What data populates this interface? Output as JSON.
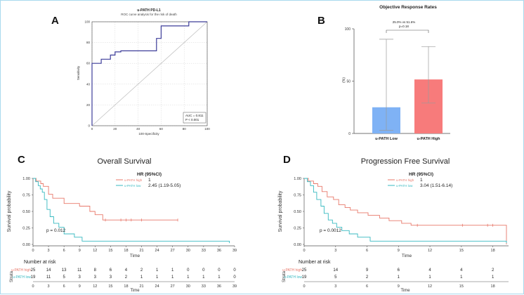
{
  "panels": {
    "a": {
      "letter": "A"
    },
    "b": {
      "letter": "B"
    },
    "c": {
      "letter": "C"
    },
    "d": {
      "letter": "D"
    }
  },
  "colors": {
    "roc": "#3d3d99",
    "low_bar": "#7fb2f5",
    "high_bar": "#f77b7b",
    "km_high": "#e8786a",
    "km_low": "#37b9c0"
  },
  "chart_data": [
    {
      "id": "roc",
      "type": "line",
      "title": "u-PATH PD-L1",
      "subtitle": "ROC curve analysis for the risk of death",
      "xlabel": "100-Specificity",
      "ylabel": "Sensitivity",
      "xlim": [
        0,
        100
      ],
      "ylim": [
        0,
        100
      ],
      "xticks": [
        "0",
        "20",
        "40",
        "60",
        "80",
        "100"
      ],
      "yticks": [
        "0",
        "20",
        "40",
        "60",
        "80",
        "100"
      ],
      "grid": true,
      "series": [
        {
          "x": [
            0,
            0,
            8,
            8,
            16,
            16,
            20,
            20,
            25,
            25,
            56,
            56,
            60,
            60,
            84,
            84,
            100
          ],
          "y": [
            0,
            60,
            60,
            64,
            64,
            68,
            68,
            71,
            71,
            72,
            72,
            84,
            84,
            96,
            96,
            100,
            100
          ]
        }
      ],
      "reference_line": {
        "x": [
          0,
          100
        ],
        "y": [
          0,
          100
        ]
      },
      "annotations": [
        "AUC = 0.811",
        "P < 0.001"
      ]
    },
    {
      "id": "orr",
      "type": "bar",
      "title": "Objective Response Rates",
      "ylabel": "(%)",
      "ylim": [
        0,
        100
      ],
      "yticks": [
        "0",
        "50",
        "100"
      ],
      "categories": [
        "u-PATH Low",
        "u-PATH High"
      ],
      "values": [
        25.0,
        51.6
      ],
      "error_low": [
        3,
        29
      ],
      "error_high": [
        90,
        83
      ],
      "comparison": {
        "label": "25.0% vs 51.6%",
        "p": "p=0.18"
      }
    },
    {
      "id": "os",
      "type": "line",
      "title": "Overall Survival",
      "xlabel": "Time",
      "ylabel": "Survival probability",
      "xlim": [
        0,
        39
      ],
      "ylim": [
        0,
        1
      ],
      "xticks": [
        "0",
        "3",
        "6",
        "9",
        "12",
        "15",
        "18",
        "21",
        "24",
        "27",
        "30",
        "33",
        "36",
        "39"
      ],
      "yticks": [
        "0.00",
        "0.25",
        "0.50",
        "0.75",
        "1.00"
      ],
      "legend": {
        "placement": "top-center",
        "header": "HR (95%CI)",
        "entries": [
          "u-PATH high",
          "u-PATH low"
        ],
        "values": [
          "1",
          "2.45 (1.19-5.05)"
        ]
      },
      "p_label": "p = 0.012",
      "series": [
        {
          "name": "u-PATH high",
          "x": [
            0,
            0.6,
            0.6,
            1.5,
            1.5,
            2,
            2,
            3,
            3,
            3.8,
            3.8,
            6,
            6,
            9,
            9,
            11,
            11,
            12,
            12,
            13.5,
            13.5,
            28
          ],
          "y": [
            1,
            1,
            0.96,
            0.96,
            0.92,
            0.92,
            0.88,
            0.88,
            0.76,
            0.76,
            0.7,
            0.7,
            0.62,
            0.62,
            0.58,
            0.58,
            0.5,
            0.5,
            0.45,
            0.45,
            0.37,
            0.37
          ],
          "censor_x": [
            14,
            17,
            18,
            19,
            21,
            28
          ],
          "censor_y": [
            0.37,
            0.37,
            0.37,
            0.37,
            0.37,
            0.37
          ]
        },
        {
          "name": "u-PATH low",
          "x": [
            0,
            0.5,
            0.5,
            1,
            1,
            1.4,
            1.4,
            1.8,
            1.8,
            2.2,
            2.2,
            2.7,
            2.7,
            3.3,
            3.3,
            4,
            4,
            5,
            5,
            6,
            6,
            8,
            8,
            9.5,
            9.5,
            38,
            38
          ],
          "y": [
            1,
            1,
            0.95,
            0.95,
            0.89,
            0.89,
            0.84,
            0.84,
            0.79,
            0.79,
            0.68,
            0.68,
            0.53,
            0.53,
            0.42,
            0.42,
            0.32,
            0.32,
            0.26,
            0.26,
            0.16,
            0.16,
            0.11,
            0.11,
            0.05,
            0.05,
            0.02
          ],
          "censor_x": [],
          "censor_y": []
        }
      ],
      "risk_table": {
        "label": "Number at risk",
        "strata_label": "Strata",
        "time_label": "Time",
        "times": [
          "0",
          "3",
          "6",
          "9",
          "12",
          "15",
          "18",
          "21",
          "24",
          "27",
          "30",
          "33",
          "36",
          "39"
        ],
        "rows": [
          {
            "name": "u-PATH high",
            "counts": [
              "25",
              "14",
              "13",
              "11",
              "8",
              "6",
              "4",
              "2",
              "1",
              "1",
              "0",
              "0",
              "0",
              "0"
            ]
          },
          {
            "name": "u-PATH low",
            "counts": [
              "19",
              "11",
              "5",
              "3",
              "3",
              "3",
              "2",
              "1",
              "1",
              "1",
              "1",
              "1",
              "1",
              "0"
            ]
          }
        ]
      }
    },
    {
      "id": "pfs",
      "type": "line",
      "title": "Progression Free Survival",
      "xlabel": "Time",
      "ylabel": "Survival probability",
      "xlim": [
        0,
        19.5
      ],
      "ylim": [
        0,
        1
      ],
      "xticks": [
        "0",
        "3",
        "6",
        "9",
        "12",
        "15",
        "18"
      ],
      "yticks": [
        "0.00",
        "0.25",
        "0.50",
        "0.75",
        "1.00"
      ],
      "legend": {
        "placement": "top-center",
        "header": "HR (95%CI)",
        "entries": [
          "u-PATH high",
          "u-PATH low"
        ],
        "values": [
          "1",
          "3.04 (1.51-6.14)"
        ]
      },
      "p_label": "p = 0.0012",
      "series": [
        {
          "name": "u-PATH high",
          "x": [
            0,
            0.4,
            0.4,
            0.9,
            0.9,
            1.3,
            1.3,
            1.7,
            1.7,
            2.2,
            2.2,
            2.8,
            2.8,
            3.3,
            3.3,
            3.9,
            3.9,
            4.4,
            4.4,
            5.1,
            5.1,
            6.1,
            6.1,
            7.2,
            7.2,
            8.1,
            8.1,
            9.3,
            9.3,
            10.2,
            10.2,
            19.3,
            19.3
          ],
          "y": [
            1,
            1,
            0.96,
            0.96,
            0.92,
            0.92,
            0.88,
            0.88,
            0.8,
            0.8,
            0.72,
            0.72,
            0.68,
            0.68,
            0.6,
            0.6,
            0.56,
            0.56,
            0.52,
            0.52,
            0.48,
            0.48,
            0.44,
            0.44,
            0.4,
            0.4,
            0.36,
            0.36,
            0.32,
            0.32,
            0.29,
            0.29,
            0.0
          ],
          "censor_x": [
            10.8,
            15.1,
            17.5,
            18.0
          ],
          "censor_y": [
            0.29,
            0.29,
            0.29,
            0.29
          ]
        },
        {
          "name": "u-PATH low",
          "x": [
            0,
            0.3,
            0.3,
            0.6,
            0.6,
            0.9,
            0.9,
            1.2,
            1.2,
            1.6,
            1.6,
            1.9,
            1.9,
            2.3,
            2.3,
            2.7,
            2.7,
            3.1,
            3.1,
            3.6,
            3.6,
            4.3,
            4.3,
            5.1,
            5.1,
            6.3,
            6.3,
            7.6,
            7.6,
            19.3,
            19.3
          ],
          "y": [
            1,
            1,
            0.95,
            0.95,
            0.89,
            0.89,
            0.79,
            0.79,
            0.68,
            0.68,
            0.58,
            0.58,
            0.47,
            0.47,
            0.37,
            0.37,
            0.32,
            0.32,
            0.26,
            0.26,
            0.21,
            0.21,
            0.16,
            0.16,
            0.11,
            0.11,
            0.05,
            0.05,
            0.05,
            0.05,
            0.02
          ],
          "censor_x": [],
          "censor_y": []
        }
      ],
      "risk_table": {
        "label": "Number at risk",
        "strata_label": "Strata",
        "time_label": "Time",
        "times": [
          "0",
          "3",
          "6",
          "9",
          "12",
          "15",
          "18"
        ],
        "rows": [
          {
            "name": "u-PATH high",
            "counts": [
              "25",
              "14",
              "9",
              "6",
              "4",
              "4",
              "2"
            ]
          },
          {
            "name": "u-PATH low",
            "counts": [
              "19",
              "5",
              "2",
              "1",
              "1",
              "1",
              "1"
            ]
          }
        ]
      }
    }
  ]
}
